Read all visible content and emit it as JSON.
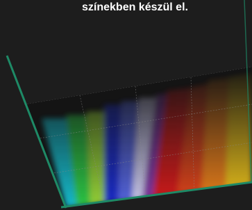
{
  "caption": "színekben készül el."
}
